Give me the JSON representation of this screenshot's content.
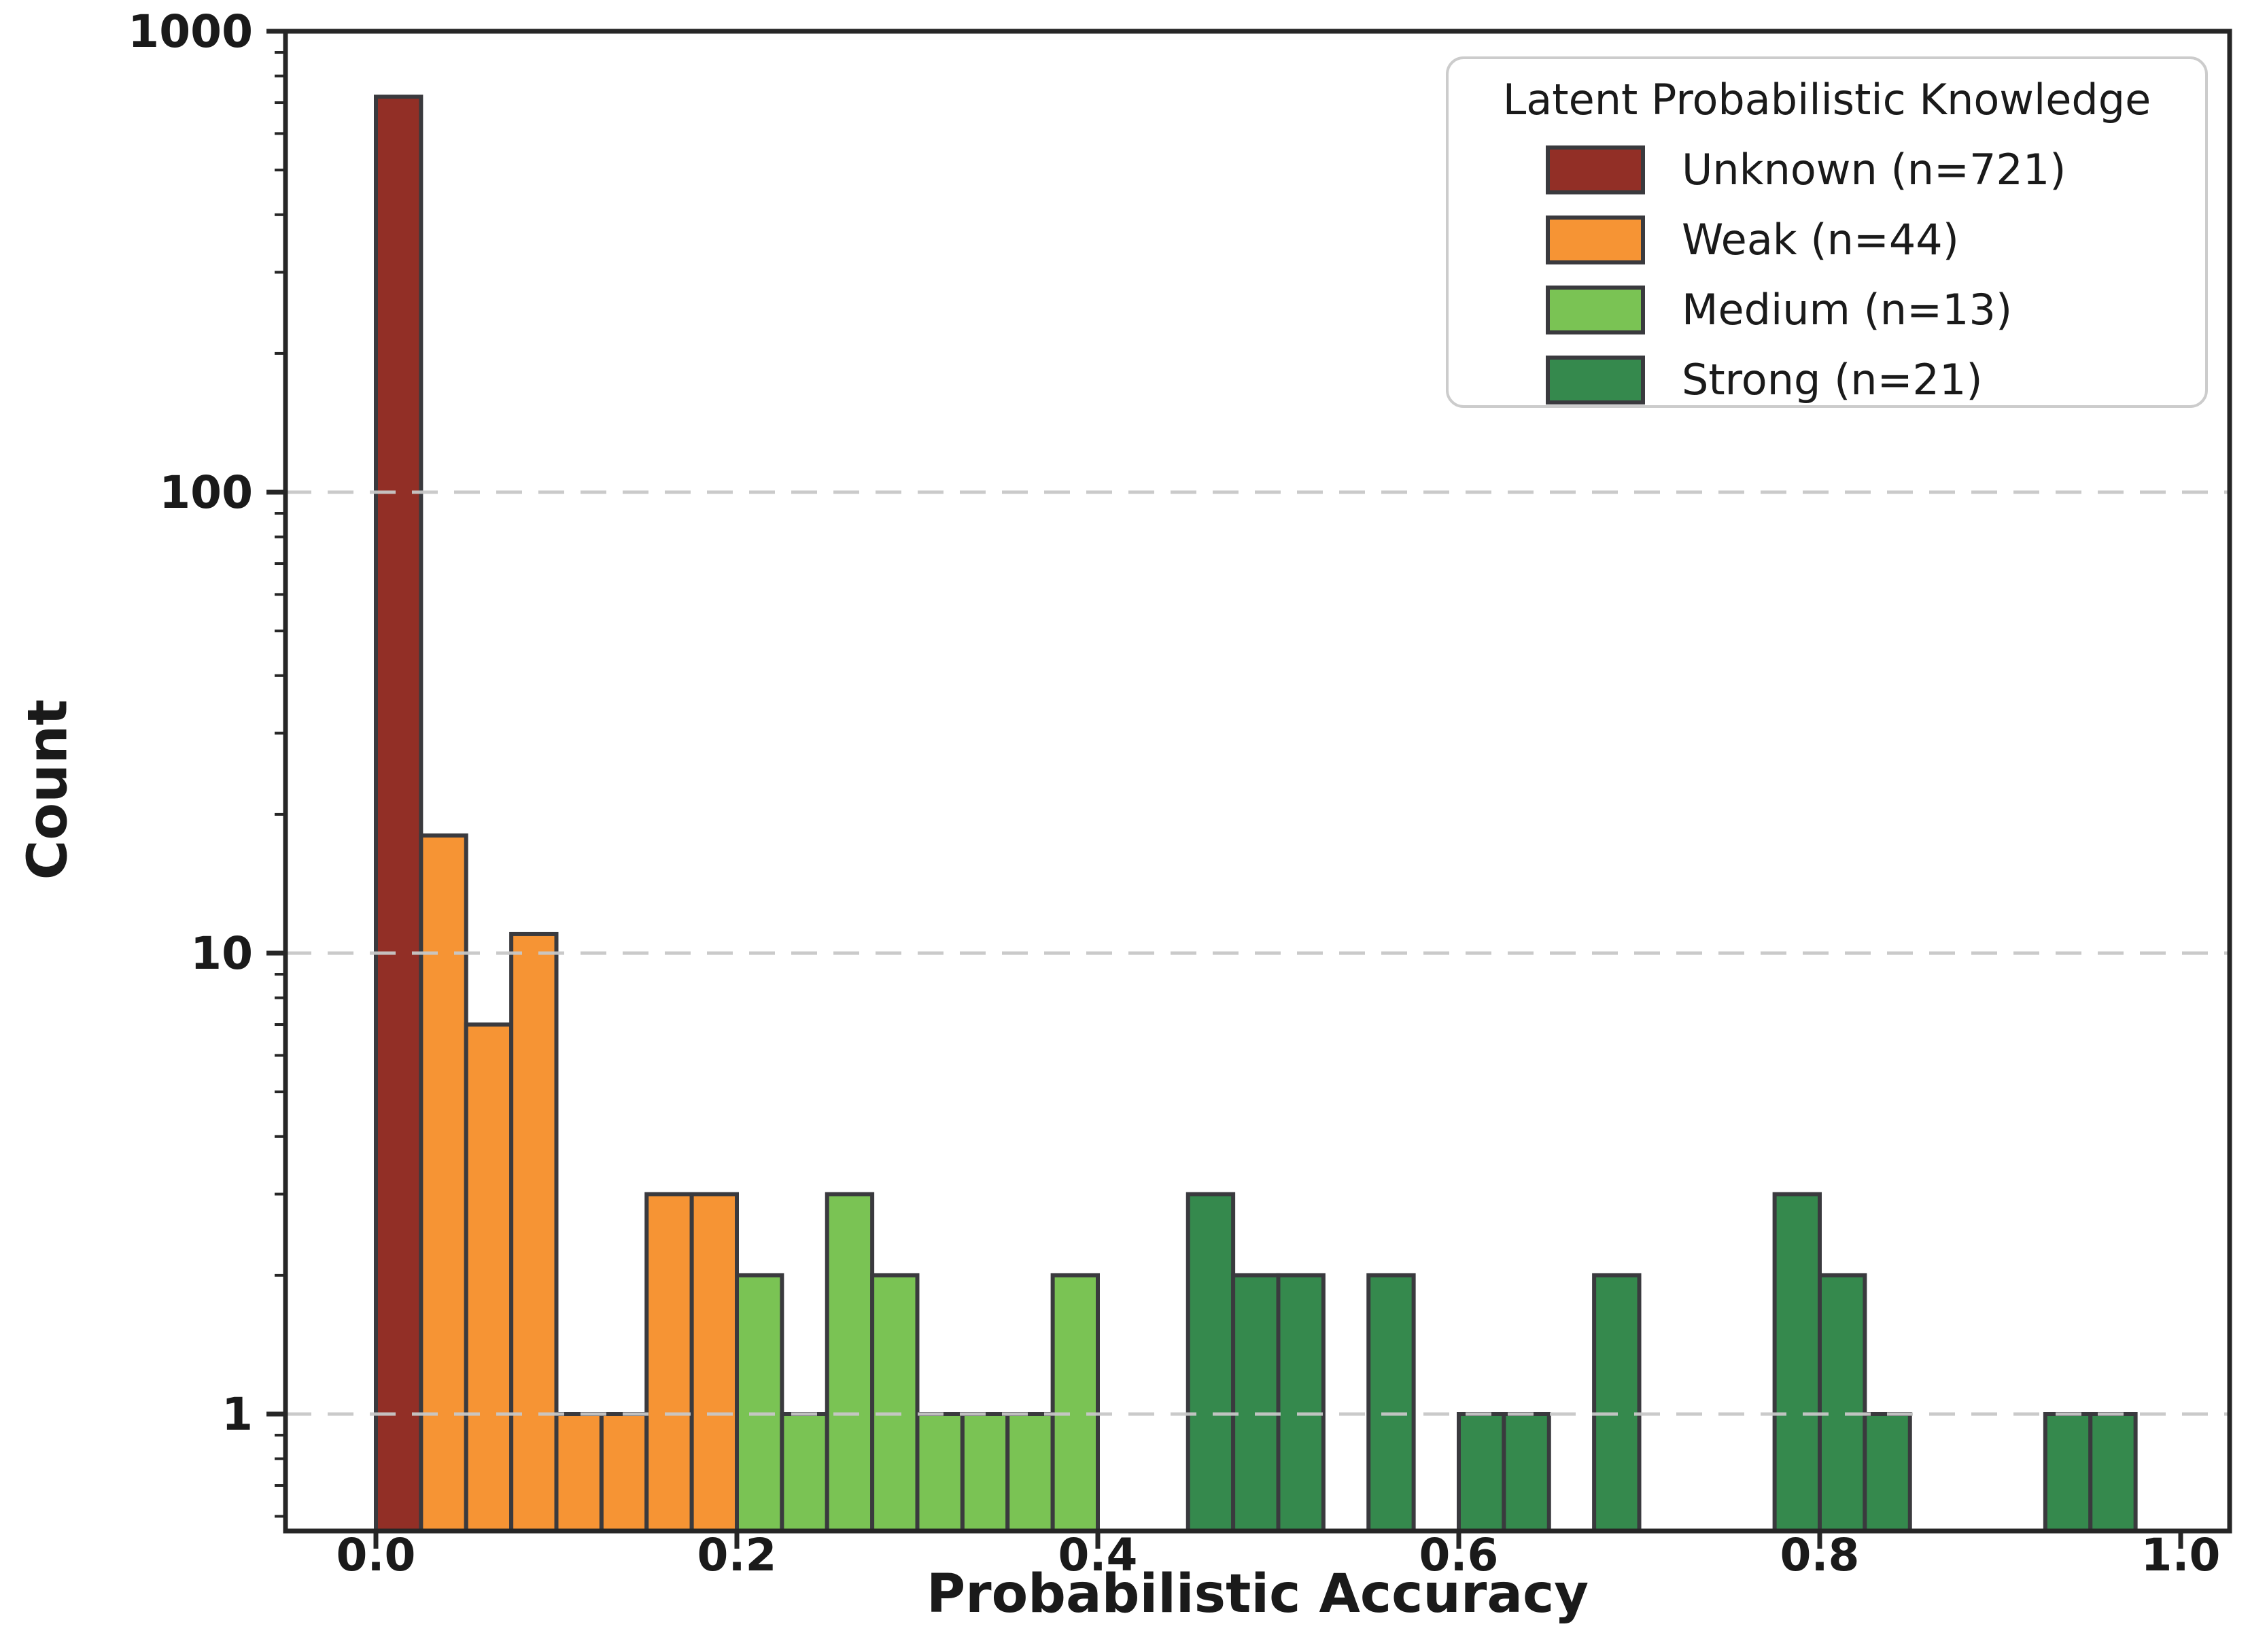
{
  "figure": {
    "xlabel": "Probabilistic Accuracy",
    "ylabel": "Count"
  },
  "legend": {
    "title": "Latent Probabilistic Knowledge",
    "entries": [
      {
        "label": "Unknown (n=721)",
        "color": "#922F26"
      },
      {
        "label": "Weak (n=44)",
        "color": "#F69434"
      },
      {
        "label": "Medium (n=13)",
        "color": "#7AC354"
      },
      {
        "label": "Strong (n=21)",
        "color": "#35894D"
      }
    ]
  },
  "chart_data": {
    "type": "bar",
    "subtype": "histogram",
    "title": "",
    "xlabel": "Probabilistic Accuracy",
    "ylabel": "Count",
    "yscale": "log",
    "xlim": [
      -0.05,
      1.027
    ],
    "ylim": [
      0.56,
      1000
    ],
    "x_ticks": [
      0.0,
      0.2,
      0.4,
      0.6,
      0.8,
      1.0
    ],
    "y_ticks": [
      1,
      10,
      100,
      1000
    ],
    "grid": {
      "y_values": [
        1,
        10,
        100
      ],
      "style": "dashed",
      "color": "#C8C8C8"
    },
    "legend_position": "upper right",
    "bin_width": 0.025,
    "bar_edge_color": "#3A3A3E",
    "spine_color": "#262626",
    "series": [
      {
        "name": "Unknown (n=721)",
        "color": "#922F26",
        "bars": [
          {
            "x": 0.0,
            "count": 721
          }
        ]
      },
      {
        "name": "Weak (n=44)",
        "color": "#F69434",
        "bars": [
          {
            "x": 0.025,
            "count": 18
          },
          {
            "x": 0.05,
            "count": 7
          },
          {
            "x": 0.075,
            "count": 11
          },
          {
            "x": 0.1,
            "count": 1
          },
          {
            "x": 0.125,
            "count": 1
          },
          {
            "x": 0.15,
            "count": 3
          },
          {
            "x": 0.175,
            "count": 3
          }
        ]
      },
      {
        "name": "Medium (n=13)",
        "color": "#7AC354",
        "bars": [
          {
            "x": 0.2,
            "count": 2
          },
          {
            "x": 0.225,
            "count": 1
          },
          {
            "x": 0.25,
            "count": 3
          },
          {
            "x": 0.275,
            "count": 2
          },
          {
            "x": 0.3,
            "count": 1
          },
          {
            "x": 0.325,
            "count": 1
          },
          {
            "x": 0.35,
            "count": 1
          },
          {
            "x": 0.375,
            "count": 2
          }
        ]
      },
      {
        "name": "Strong (n=21)",
        "color": "#35894D",
        "bars": [
          {
            "x": 0.45,
            "count": 3
          },
          {
            "x": 0.475,
            "count": 2
          },
          {
            "x": 0.5,
            "count": 2
          },
          {
            "x": 0.55,
            "count": 2
          },
          {
            "x": 0.6,
            "count": 1
          },
          {
            "x": 0.625,
            "count": 1
          },
          {
            "x": 0.675,
            "count": 2
          },
          {
            "x": 0.775,
            "count": 3
          },
          {
            "x": 0.8,
            "count": 2
          },
          {
            "x": 0.825,
            "count": 1
          },
          {
            "x": 0.925,
            "count": 1
          },
          {
            "x": 0.95,
            "count": 1
          }
        ]
      }
    ]
  }
}
